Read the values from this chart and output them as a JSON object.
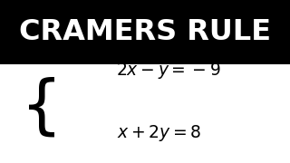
{
  "title": "CRAMERS RULE",
  "title_bg": "#000000",
  "title_color": "#ffffff",
  "body_bg": "#ffffff",
  "title_fontsize": 23,
  "eq_fontsize": 13.5,
  "brace_fontsize": 52
}
